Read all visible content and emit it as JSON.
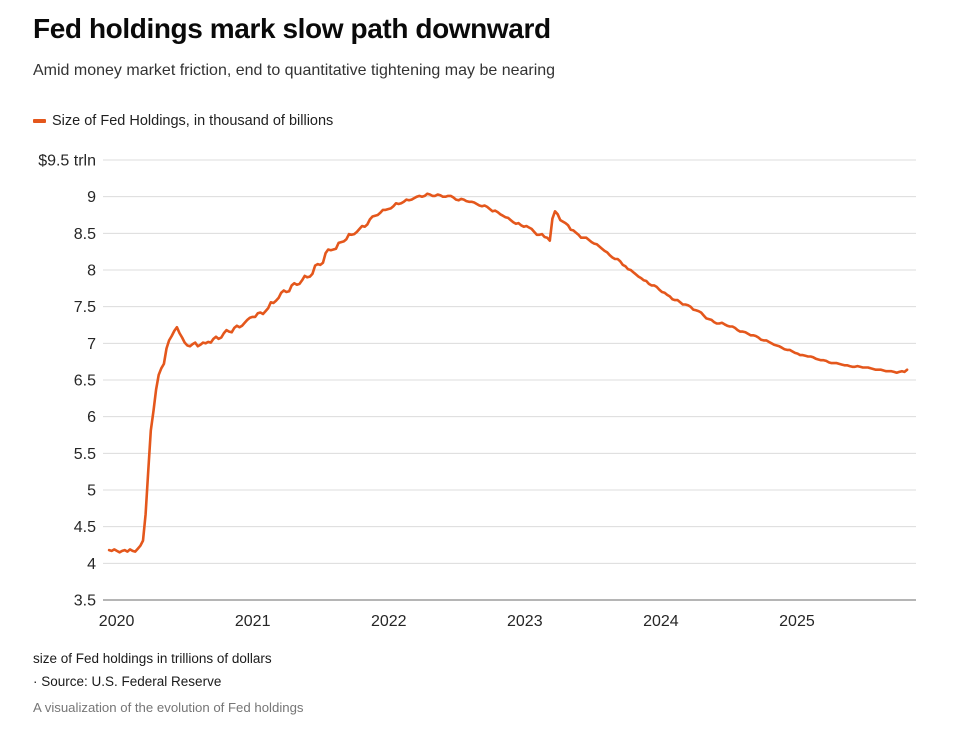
{
  "header": {
    "title": "Fed holdings mark slow path downward",
    "subtitle": "Amid money market friction, end to quantitative tightening may be nearing"
  },
  "legend": {
    "label": "Size of Fed Holdings, in thousand of billions",
    "swatch_color": "#e4571c"
  },
  "colors": {
    "line": "#e4571c",
    "grid": "#dcdcdc",
    "axis_baseline": "#b5b5b5",
    "tick_text": "#262626",
    "title_text": "#0a0a0a",
    "muted_text": "#767676"
  },
  "chart_data": {
    "type": "line",
    "title": "Fed holdings mark slow path downward",
    "subtitle": "Amid money market friction, end to quantitative tightening may be nearing",
    "xlabel": "",
    "ylabel": "$ trln",
    "grid": "horizontal",
    "legend_position": "top-left",
    "xlim": [
      2019.9,
      2025.875
    ],
    "ylim": [
      3.5,
      9.5
    ],
    "x_ticks": [
      {
        "value": 2020,
        "label": "2020"
      },
      {
        "value": 2021,
        "label": "2021"
      },
      {
        "value": 2022,
        "label": "2022"
      },
      {
        "value": 2023,
        "label": "2023"
      },
      {
        "value": 2024,
        "label": "2024"
      },
      {
        "value": 2025,
        "label": "2025"
      }
    ],
    "y_ticks": [
      {
        "value": 9.5,
        "label": "$9.5 trln",
        "baseline": false
      },
      {
        "value": 9,
        "label": "9",
        "baseline": false
      },
      {
        "value": 8.5,
        "label": "8.5",
        "baseline": false
      },
      {
        "value": 8,
        "label": "8",
        "baseline": false
      },
      {
        "value": 7.5,
        "label": "7.5",
        "baseline": false
      },
      {
        "value": 7,
        "label": "7",
        "baseline": false
      },
      {
        "value": 6.5,
        "label": "6.5",
        "baseline": false
      },
      {
        "value": 6,
        "label": "6",
        "baseline": false
      },
      {
        "value": 5.5,
        "label": "5.5",
        "baseline": false
      },
      {
        "value": 5,
        "label": "5",
        "baseline": false
      },
      {
        "value": 4.5,
        "label": "4.5",
        "baseline": false
      },
      {
        "value": 4,
        "label": "4",
        "baseline": false
      },
      {
        "value": 3.5,
        "label": "3.5",
        "baseline": true
      }
    ],
    "series": [
      {
        "name": "Size of Fed Holdings, in thousand of billions",
        "color": "#e4571c",
        "unit": "trillions of dollars",
        "x_start": 2019.945,
        "x_step": 0.019165,
        "values": [
          4.18,
          4.17,
          4.19,
          4.17,
          4.15,
          4.17,
          4.18,
          4.16,
          4.19,
          4.17,
          4.16,
          4.2,
          4.24,
          4.31,
          4.67,
          5.25,
          5.81,
          6.08,
          6.37,
          6.57,
          6.66,
          6.72,
          6.93,
          7.04,
          7.1,
          7.17,
          7.22,
          7.14,
          7.08,
          7.01,
          6.97,
          6.96,
          6.99,
          7.01,
          6.96,
          6.98,
          7.01,
          7.0,
          7.02,
          7.01,
          7.06,
          7.09,
          7.06,
          7.08,
          7.14,
          7.18,
          7.16,
          7.15,
          7.21,
          7.24,
          7.22,
          7.24,
          7.28,
          7.32,
          7.35,
          7.36,
          7.36,
          7.41,
          7.42,
          7.4,
          7.44,
          7.48,
          7.56,
          7.55,
          7.58,
          7.62,
          7.69,
          7.72,
          7.7,
          7.71,
          7.79,
          7.82,
          7.8,
          7.81,
          7.86,
          7.92,
          7.9,
          7.91,
          7.95,
          8.06,
          8.08,
          8.07,
          8.1,
          8.23,
          8.28,
          8.27,
          8.28,
          8.29,
          8.37,
          8.38,
          8.39,
          8.42,
          8.49,
          8.48,
          8.49,
          8.52,
          8.56,
          8.6,
          8.59,
          8.62,
          8.69,
          8.73,
          8.74,
          8.75,
          8.78,
          8.82,
          8.82,
          8.83,
          8.84,
          8.87,
          8.91,
          8.9,
          8.91,
          8.93,
          8.96,
          8.95,
          8.96,
          8.98,
          9.0,
          9.01,
          9.0,
          9.01,
          9.04,
          9.03,
          9.01,
          9.01,
          9.03,
          9.02,
          9.0,
          9.0,
          9.01,
          9.01,
          8.99,
          8.96,
          8.95,
          8.97,
          8.96,
          8.94,
          8.93,
          8.93,
          8.92,
          8.9,
          8.88,
          8.87,
          8.88,
          8.86,
          8.83,
          8.8,
          8.81,
          8.79,
          8.76,
          8.74,
          8.72,
          8.71,
          8.68,
          8.65,
          8.63,
          8.64,
          8.61,
          8.59,
          8.6,
          8.58,
          8.56,
          8.52,
          8.48,
          8.48,
          8.49,
          8.45,
          8.44,
          8.4,
          8.7,
          8.8,
          8.76,
          8.68,
          8.66,
          8.64,
          8.61,
          8.55,
          8.54,
          8.51,
          8.48,
          8.44,
          8.44,
          8.44,
          8.41,
          8.38,
          8.36,
          8.35,
          8.32,
          8.29,
          8.26,
          8.24,
          8.2,
          8.17,
          8.15,
          8.15,
          8.12,
          8.07,
          8.05,
          8.01,
          8.0,
          7.97,
          7.94,
          7.91,
          7.89,
          7.86,
          7.85,
          7.81,
          7.79,
          7.79,
          7.77,
          7.73,
          7.7,
          7.69,
          7.66,
          7.64,
          7.6,
          7.59,
          7.59,
          7.56,
          7.53,
          7.53,
          7.52,
          7.5,
          7.46,
          7.45,
          7.44,
          7.42,
          7.38,
          7.34,
          7.33,
          7.32,
          7.29,
          7.27,
          7.27,
          7.28,
          7.26,
          7.24,
          7.23,
          7.23,
          7.21,
          7.18,
          7.16,
          7.16,
          7.15,
          7.13,
          7.11,
          7.11,
          7.1,
          7.08,
          7.05,
          7.04,
          7.04,
          7.02,
          7.0,
          6.98,
          6.97,
          6.96,
          6.94,
          6.92,
          6.91,
          6.91,
          6.89,
          6.87,
          6.86,
          6.84,
          6.84,
          6.83,
          6.82,
          6.82,
          6.81,
          6.79,
          6.78,
          6.77,
          6.77,
          6.76,
          6.74,
          6.73,
          6.73,
          6.73,
          6.72,
          6.71,
          6.7,
          6.7,
          6.69,
          6.68,
          6.68,
          6.69,
          6.68,
          6.67,
          6.67,
          6.67,
          6.66,
          6.65,
          6.64,
          6.64,
          6.64,
          6.63,
          6.62,
          6.62,
          6.62,
          6.61,
          6.6,
          6.61,
          6.62,
          6.61,
          6.64
        ]
      }
    ]
  },
  "footer": {
    "note": "size of Fed holdings in trillions of dollars",
    "source": "· Source: U.S. Federal Reserve",
    "caption": "A visualization of the evolution of Fed holdings"
  }
}
